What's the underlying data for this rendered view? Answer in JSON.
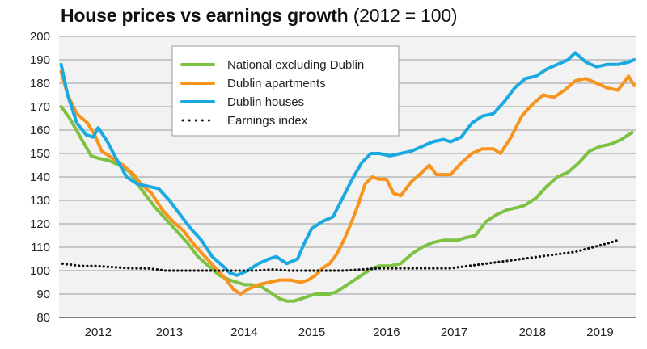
{
  "title": {
    "bold": "House prices vs earnings growth",
    "light": "(2012 = 100)"
  },
  "chart_data": {
    "type": "line",
    "title": "House prices vs earnings growth (2012 = 100)",
    "xlabel": "",
    "ylabel": "",
    "ylim": [
      80,
      200
    ],
    "xlim": [
      2011.5,
      2019.6
    ],
    "grid": true,
    "legend_position": "top-center",
    "yticks": [
      80,
      90,
      100,
      110,
      120,
      130,
      140,
      150,
      160,
      170,
      180,
      190,
      200
    ],
    "xticks": [
      {
        "label": "2012",
        "t": 2012.05
      },
      {
        "label": "2013",
        "t": 2013.05
      },
      {
        "label": "2014",
        "t": 2014.1
      },
      {
        "label": "2015",
        "t": 2015.05
      },
      {
        "label": "2016",
        "t": 2016.1
      },
      {
        "label": "2017",
        "t": 2017.05
      },
      {
        "label": "2018",
        "t": 2018.15
      },
      {
        "label": "2019",
        "t": 2019.1
      }
    ],
    "series": [
      {
        "name": "National excluding Dublin",
        "color": "#7dc242",
        "style": "solid",
        "t": [
          2011.53,
          2011.65,
          2011.8,
          2011.95,
          2012.05,
          2012.2,
          2012.35,
          2012.5,
          2012.6,
          2012.7,
          2012.85,
          2013.0,
          2013.15,
          2013.3,
          2013.45,
          2013.6,
          2013.75,
          2013.9,
          2014.0,
          2014.1,
          2014.2,
          2014.35,
          2014.5,
          2014.6,
          2014.7,
          2014.8,
          2014.9,
          2015.0,
          2015.1,
          2015.2,
          2015.3,
          2015.4,
          2015.5,
          2015.6,
          2015.75,
          2015.9,
          2016.0,
          2016.15,
          2016.3,
          2016.45,
          2016.6,
          2016.75,
          2016.9,
          2017.0,
          2017.1,
          2017.2,
          2017.35,
          2017.5,
          2017.65,
          2017.8,
          2017.95,
          2018.05,
          2018.2,
          2018.35,
          2018.5,
          2018.65,
          2018.8,
          2018.95,
          2019.1,
          2019.25,
          2019.4,
          2019.55
        ],
        "values": [
          170,
          165,
          157,
          149,
          148,
          147,
          145,
          142,
          137,
          133,
          127,
          122,
          117,
          112,
          106,
          102,
          98,
          96,
          95,
          94,
          94,
          93,
          90,
          88,
          87,
          87,
          88,
          89,
          90,
          90,
          90,
          91,
          93,
          95,
          98,
          101,
          102,
          102,
          103,
          107,
          110,
          112,
          113,
          113,
          113,
          114,
          115,
          121,
          124,
          126,
          127,
          128,
          131,
          136,
          140,
          142,
          146,
          151,
          153,
          154,
          156,
          159
        ]
      },
      {
        "name": "Dublin apartments",
        "color": "#f7941d",
        "style": "solid",
        "t": [
          2011.53,
          2011.62,
          2011.75,
          2011.9,
          2012.0,
          2012.1,
          2012.25,
          2012.4,
          2012.55,
          2012.65,
          2012.8,
          2012.95,
          2013.1,
          2013.25,
          2013.4,
          2013.55,
          2013.7,
          2013.85,
          2013.95,
          2014.05,
          2014.15,
          2014.3,
          2014.45,
          2014.6,
          2014.75,
          2014.9,
          2015.0,
          2015.1,
          2015.2,
          2015.3,
          2015.4,
          2015.5,
          2015.6,
          2015.7,
          2015.8,
          2015.9,
          2016.0,
          2016.1,
          2016.2,
          2016.3,
          2016.45,
          2016.6,
          2016.7,
          2016.8,
          2016.9,
          2017.0,
          2017.15,
          2017.3,
          2017.45,
          2017.6,
          2017.7,
          2017.85,
          2018.0,
          2018.15,
          2018.3,
          2018.45,
          2018.6,
          2018.75,
          2018.9,
          2019.05,
          2019.2,
          2019.35,
          2019.5,
          2019.58
        ],
        "values": [
          185,
          175,
          167,
          163,
          158,
          151,
          148,
          145,
          141,
          137,
          133,
          126,
          121,
          117,
          111,
          106,
          101,
          96,
          92,
          90,
          92,
          94,
          95,
          96,
          96,
          95,
          96,
          98,
          101,
          103,
          107,
          113,
          120,
          128,
          137,
          140,
          139,
          139,
          133,
          132,
          138,
          142,
          145,
          141,
          141,
          141,
          146,
          150,
          152,
          152,
          150,
          157,
          166,
          171,
          175,
          174,
          177,
          181,
          182,
          180,
          178,
          177,
          183,
          179
        ]
      },
      {
        "name": "Dublin houses",
        "color": "#1ba9e1",
        "style": "solid",
        "t": [
          2011.53,
          2011.62,
          2011.75,
          2011.88,
          2011.98,
          2012.05,
          2012.18,
          2012.3,
          2012.45,
          2012.6,
          2012.75,
          2012.9,
          2013.05,
          2013.2,
          2013.35,
          2013.5,
          2013.65,
          2013.8,
          2013.9,
          2014.0,
          2014.15,
          2014.3,
          2014.45,
          2014.55,
          2014.7,
          2014.85,
          2014.95,
          2015.05,
          2015.2,
          2015.35,
          2015.45,
          2015.6,
          2015.75,
          2015.88,
          2016.0,
          2016.15,
          2016.3,
          2016.45,
          2016.6,
          2016.75,
          2016.9,
          2017.0,
          2017.15,
          2017.3,
          2017.45,
          2017.6,
          2017.75,
          2017.9,
          2018.05,
          2018.2,
          2018.35,
          2018.5,
          2018.65,
          2018.75,
          2018.9,
          2019.05,
          2019.2,
          2019.35,
          2019.5,
          2019.58
        ],
        "values": [
          188,
          175,
          163,
          158,
          157,
          161,
          155,
          148,
          140,
          137,
          136,
          135,
          130,
          124,
          118,
          113,
          106,
          102,
          99,
          98,
          100,
          103,
          105,
          106,
          103,
          105,
          112,
          118,
          121,
          123,
          129,
          138,
          146,
          150,
          150,
          149,
          150,
          151,
          153,
          155,
          156,
          155,
          157,
          163,
          166,
          167,
          172,
          178,
          182,
          183,
          186,
          188,
          190,
          193,
          189,
          187,
          188,
          188,
          189,
          190
        ]
      },
      {
        "name": "Earnings index",
        "color": "#111111",
        "style": "dotted",
        "t": [
          2011.55,
          2011.8,
          2012.0,
          2012.25,
          2012.5,
          2012.75,
          2013.0,
          2013.25,
          2013.5,
          2013.75,
          2014.0,
          2014.25,
          2014.5,
          2014.75,
          2015.0,
          2015.25,
          2015.5,
          2015.75,
          2016.0,
          2016.25,
          2016.5,
          2016.75,
          2017.0,
          2017.25,
          2017.5,
          2017.75,
          2018.0,
          2018.25,
          2018.5,
          2018.75,
          2019.0,
          2019.25,
          2019.35
        ],
        "values": [
          103,
          102,
          102,
          101.5,
          101,
          101,
          100,
          100,
          100,
          100,
          100,
          100,
          100.5,
          100,
          100,
          100,
          100,
          100.5,
          101,
          101,
          101,
          101,
          101,
          102,
          103,
          104,
          105,
          106,
          107,
          108,
          110,
          112,
          113
        ]
      }
    ]
  }
}
